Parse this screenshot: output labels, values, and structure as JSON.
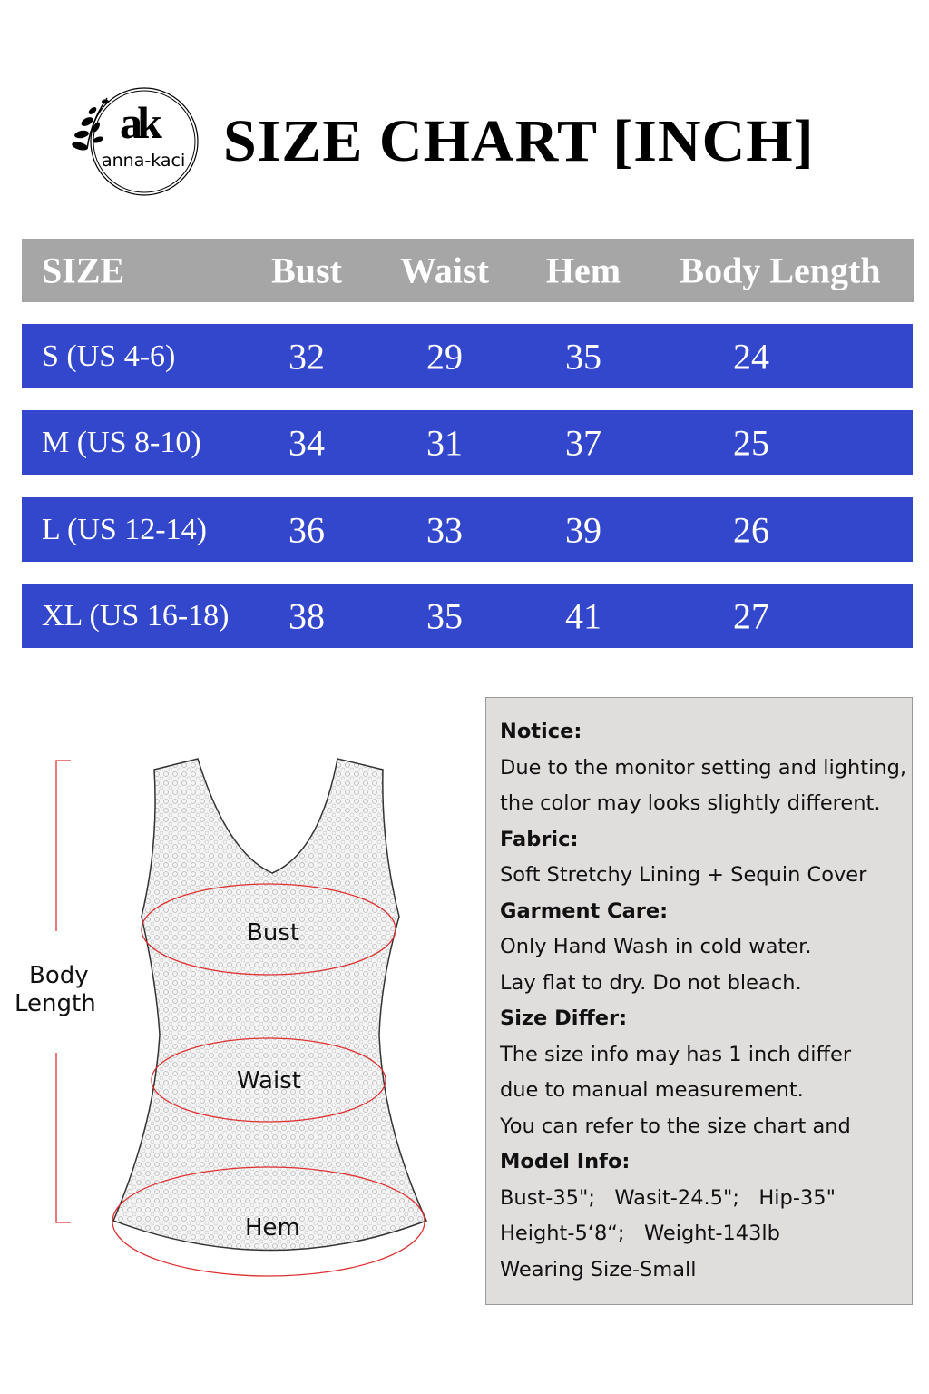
{
  "logo": {
    "monogram": "ak",
    "brand": "anna-kaci"
  },
  "title": "SIZE CHART [INCH]",
  "table": {
    "headers": [
      "SIZE",
      "Bust",
      "Waist",
      "Hem",
      "Body Length"
    ],
    "rows": [
      [
        "S (US 4-6)",
        "32",
        "29",
        "35",
        "24"
      ],
      [
        "M (US 8-10)",
        "34",
        "31",
        "37",
        "25"
      ],
      [
        "L (US 12-14)",
        "36",
        "33",
        "39",
        "26"
      ],
      [
        "XL (US 16-18)",
        "38",
        "35",
        "41",
        "27"
      ]
    ]
  },
  "diagram": {
    "body_length_1": "Body",
    "body_length_2": "Length",
    "bust": "Bust",
    "waist": "Waist",
    "hem": "Hem"
  },
  "notice": [
    {
      "text": "Notice:",
      "bold": true
    },
    {
      "text": "Due to the monitor setting and lighting,"
    },
    {
      "text": "the color may looks slightly different."
    },
    {
      "text": "Fabric:",
      "bold": true
    },
    {
      "text": "Soft Stretchy Lining + Sequin Cover"
    },
    {
      "text": "Garment Care:",
      "bold": true
    },
    {
      "text": "Only Hand Wash in cold water."
    },
    {
      "text": "Lay flat to dry. Do not bleach."
    },
    {
      "text": "Size Differ:",
      "bold": true
    },
    {
      "text": "The size info may has 1 inch differ"
    },
    {
      "text": "due to manual measurement."
    },
    {
      "text": "You can refer to the size chart and"
    },
    {
      "text": "Model Info:",
      "bold": true
    },
    {
      "text": "Bust-35\";   Wasit-24.5\";   Hip-35\""
    },
    {
      "text": "Height-5‘8“;   Weight-143lb"
    },
    {
      "text": "Wearing Size-Small"
    }
  ],
  "colors": {
    "header": "#a6a6a6",
    "row": "#3347cc",
    "notice_bg": "#e0dddd",
    "measure_line": "#e03030"
  }
}
